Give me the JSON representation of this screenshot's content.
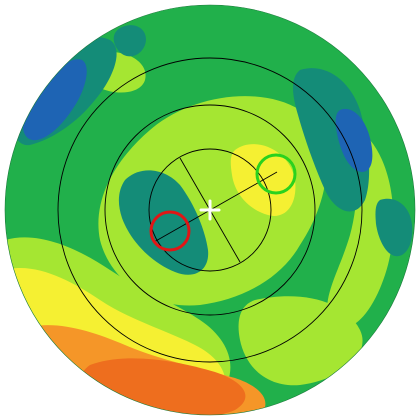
{
  "plot": {
    "kind": "circular contour map",
    "colors": {
      "background": "#ffffff",
      "deep_blue": "#1e64b4",
      "teal": "#148c78",
      "green": "#21b04b",
      "lime": "#a5e632",
      "yellow": "#f5f032",
      "orange": "#f59628",
      "dark_orange": "#ee6e1e",
      "ring_stroke": "#000000",
      "marker_red": "#e01616",
      "marker_green": "#2ad21e",
      "center_mark": "#ffffff"
    },
    "rings": 4,
    "markers": [
      {
        "name": "red-marker-circle",
        "color": "red"
      },
      {
        "name": "green-marker-circle",
        "color": "green"
      }
    ]
  }
}
